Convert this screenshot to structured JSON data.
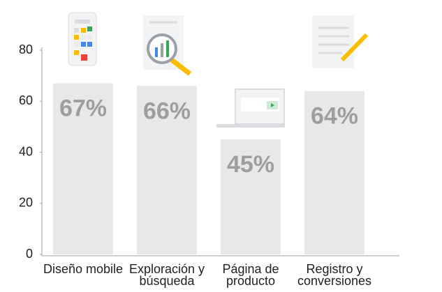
{
  "chart_data": {
    "type": "bar",
    "categories": [
      "Diseño mobile",
      "Exploración y búsqueda",
      "Página de producto",
      "Registro y conversiones"
    ],
    "values": [
      67,
      66,
      45,
      64
    ],
    "value_labels": [
      "67%",
      "66%",
      "45%",
      "64%"
    ],
    "color": "#e8e8e9",
    "ylim": [
      0,
      80
    ],
    "yticks": [
      0,
      20,
      40,
      60,
      80
    ]
  }
}
